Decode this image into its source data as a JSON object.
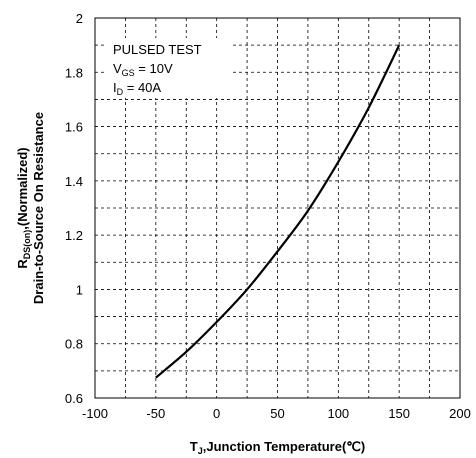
{
  "chart_data": {
    "type": "line",
    "xlabel": {
      "main": "T",
      "sub": "J",
      "rest": ",Junction Temperature(℃)"
    },
    "ylabel": {
      "line1_main": "R",
      "line1_sub": "DS(on)",
      "line1_rest": ",(Normalized)",
      "line2": "Drain-to-Source On Resistance"
    },
    "xlim": [
      -100,
      200
    ],
    "ylim": [
      0.6,
      2.0
    ],
    "x_ticks": [
      -100,
      -50,
      0,
      50,
      100,
      150,
      200
    ],
    "x_tick_labels": [
      "-100",
      "-50",
      "0",
      "50",
      "100",
      "150",
      "200"
    ],
    "y_ticks": [
      0.6,
      0.8,
      1.0,
      1.2,
      1.4,
      1.6,
      1.8,
      2.0
    ],
    "y_tick_labels": [
      "0.6",
      "0.8",
      "1",
      "1.2",
      "1.4",
      "1.6",
      "1.8",
      "2"
    ],
    "grid": "dashed, minor every 25 on x and 0.1 on y",
    "legend": {
      "line1": "PULSED TEST",
      "line2_main": "V",
      "line2_sub": "GS",
      "line2_rest": " = 10V",
      "line3_main": "I",
      "line3_sub": "D",
      "line3_rest": " = 40A"
    },
    "series": [
      {
        "x": [
          -50,
          -25,
          0,
          25,
          50,
          75,
          100,
          125,
          150
        ],
        "y": [
          0.675,
          0.77,
          0.88,
          1.0,
          1.14,
          1.29,
          1.47,
          1.67,
          1.9
        ]
      }
    ]
  }
}
